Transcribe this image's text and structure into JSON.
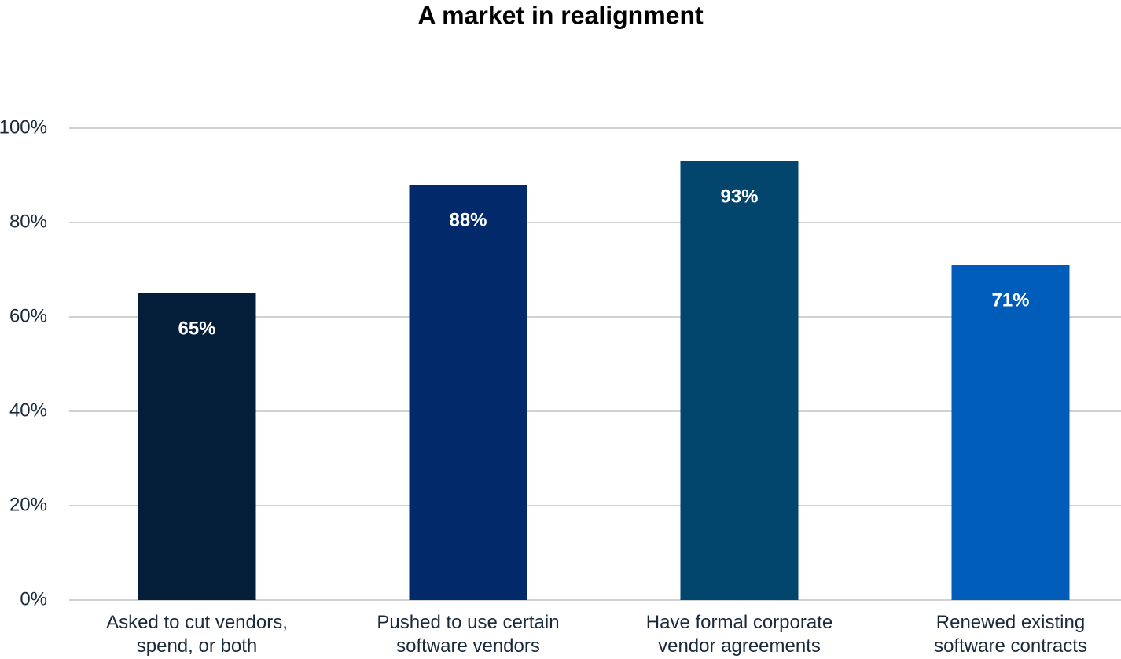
{
  "chart_data": {
    "type": "bar",
    "title": "A market in realignment",
    "categories": [
      "Asked to cut vendors, spend, or both",
      "Pushed to use certain software vendors",
      "Have formal corporate vendor agreements",
      "Renewed existing software contracts"
    ],
    "values": [
      65,
      88,
      93,
      71
    ],
    "value_labels": [
      "65%",
      "88%",
      "93%",
      "71%"
    ],
    "colors": [
      "#041e3a",
      "#022a6b",
      "#02466e",
      "#005cb9"
    ],
    "ylim": [
      0,
      100
    ],
    "yticks": [
      {
        "value": 0,
        "label": "0%"
      },
      {
        "value": 20,
        "label": "20%"
      },
      {
        "value": 40,
        "label": "40%"
      },
      {
        "value": 60,
        "label": "60%"
      },
      {
        "value": 80,
        "label": "80%"
      },
      {
        "value": 100,
        "label": "100%"
      }
    ],
    "grid": true
  }
}
